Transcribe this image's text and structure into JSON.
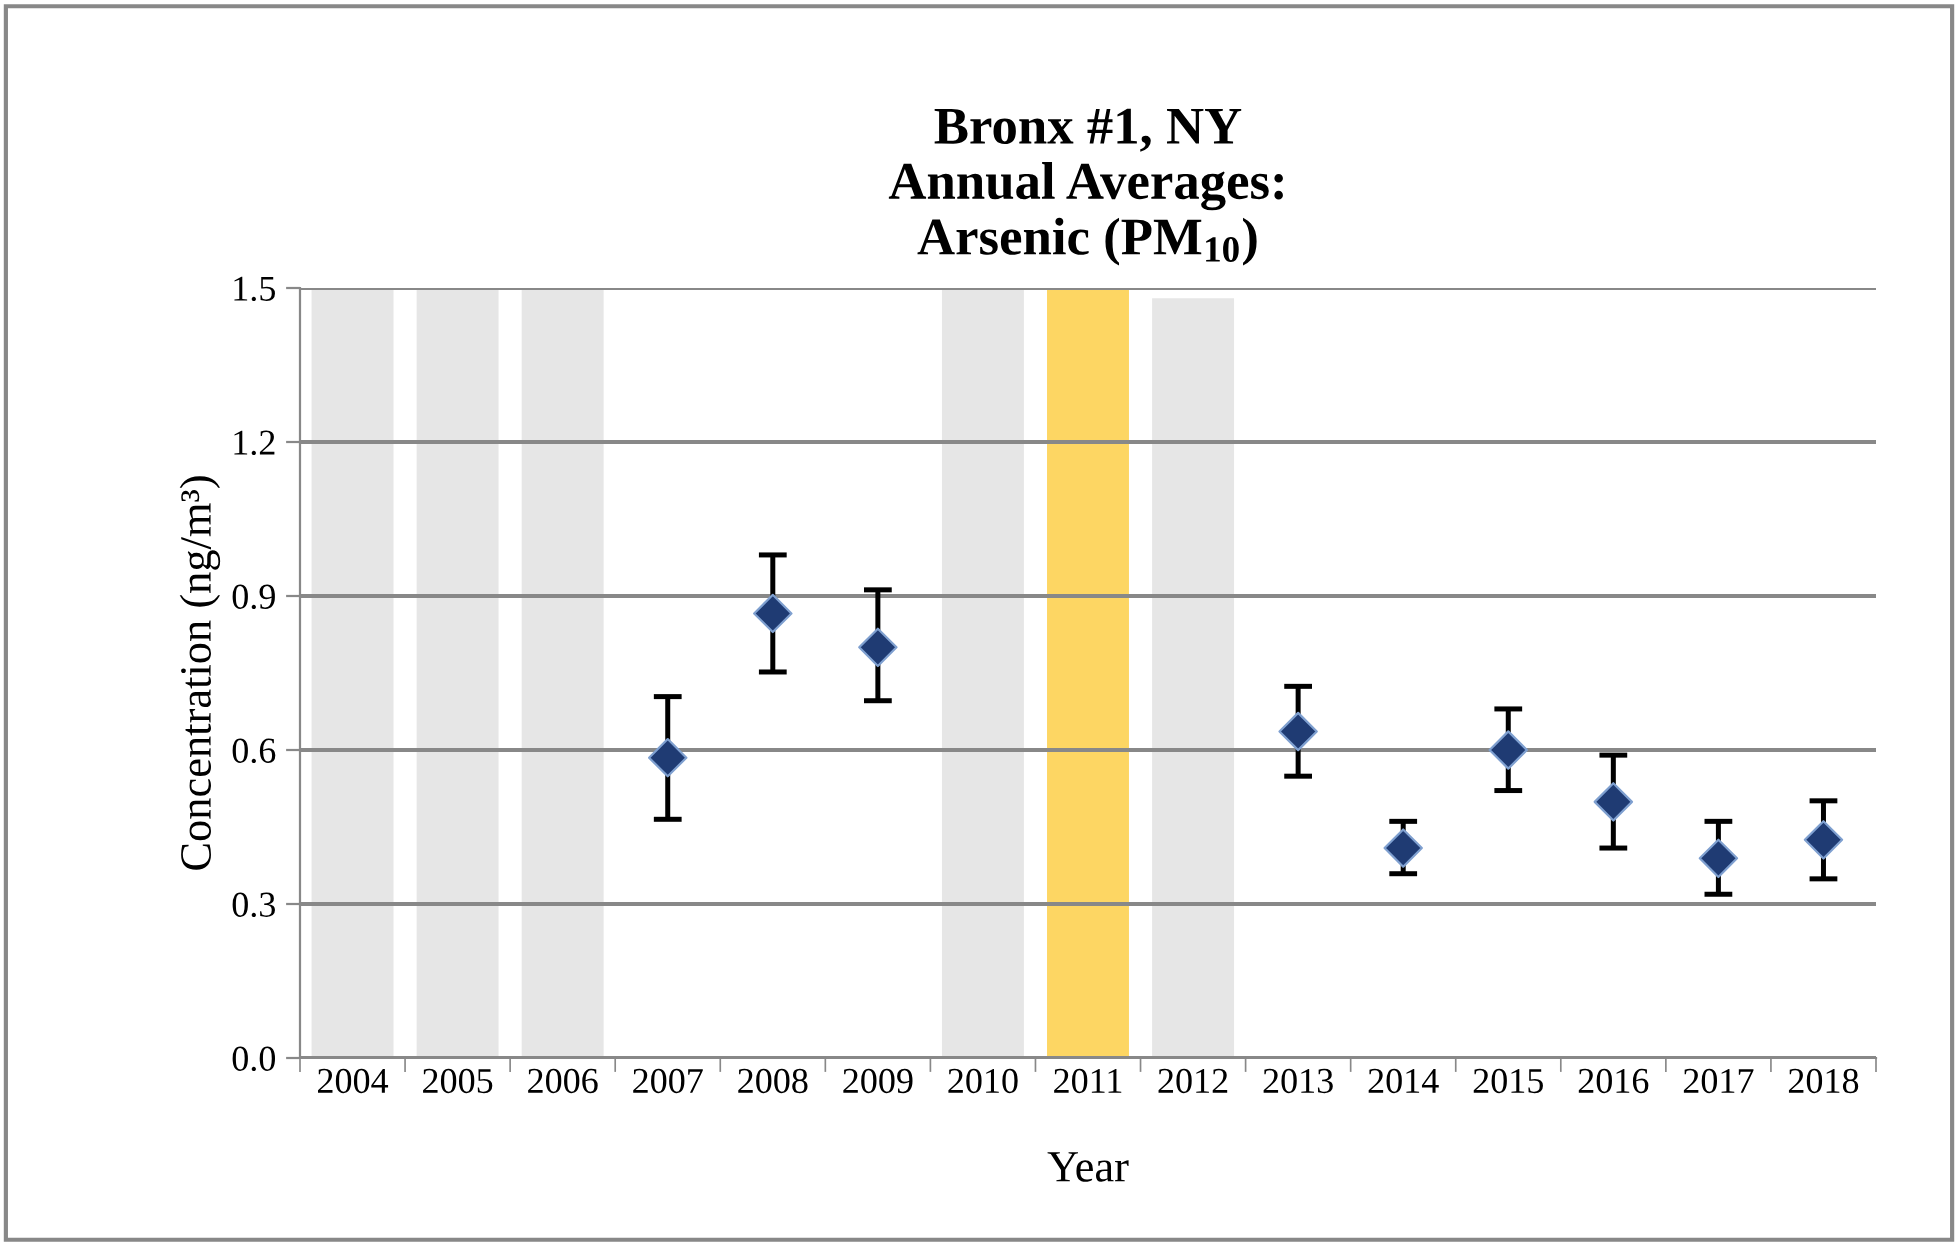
{
  "chart_data": {
    "type": "scatter",
    "title": "Bronx #1, NY\nAnnual Averages:\nArsenic (PM$_{10}$)",
    "xlabel": "Year",
    "ylabel": "Concentration (ng/m³)",
    "categories": [
      "2004",
      "2005",
      "2006",
      "2007",
      "2008",
      "2009",
      "2010",
      "2011",
      "2012",
      "2013",
      "2014",
      "2015",
      "2016",
      "2017",
      "2018"
    ],
    "series": [
      {
        "type": "bar",
        "values": [
          1.5,
          1.5,
          1.5,
          null,
          null,
          null,
          1.5,
          1.5,
          1.48,
          null,
          null,
          null,
          null,
          null,
          null
        ],
        "colors": [
          "#e6e6e6",
          "#e6e6e6",
          "#e6e6e6",
          null,
          null,
          null,
          "#e6e6e6",
          "#fdd663",
          "#e6e6e6",
          null,
          null,
          null,
          null,
          null,
          null
        ]
      },
      {
        "color": "#1f3b73",
        "marker": "diamond",
        "values": [
          null,
          null,
          null,
          0.585,
          0.866,
          0.8,
          null,
          null,
          null,
          0.636,
          0.409,
          0.6,
          0.499,
          0.389,
          0.425
        ],
        "errors": [
          null,
          null,
          null,
          [
            0.465,
            0.704
          ],
          [
            0.752,
            0.98
          ],
          [
            0.696,
            0.912
          ],
          null,
          null,
          null,
          [
            0.549,
            0.724
          ],
          [
            0.359,
            0.461
          ],
          [
            0.521,
            0.68
          ],
          [
            0.409,
            0.59
          ],
          [
            0.319,
            0.461
          ],
          [
            0.349,
            0.501
          ]
        ]
      }
    ],
    "ylim": [
      0,
      1.5
    ],
    "yticks": [
      {
        "value": 0,
        "label": "0.0"
      },
      {
        "value": 0.3,
        "label": "0.3"
      },
      {
        "value": 0.6,
        "label": "0.6"
      },
      {
        "value": 0.9,
        "label": "0.9"
      },
      {
        "value": 1.2,
        "label": "1.2"
      },
      {
        "value": 1.5,
        "label": "1.5"
      }
    ],
    "grid": "y",
    "legend": false
  }
}
